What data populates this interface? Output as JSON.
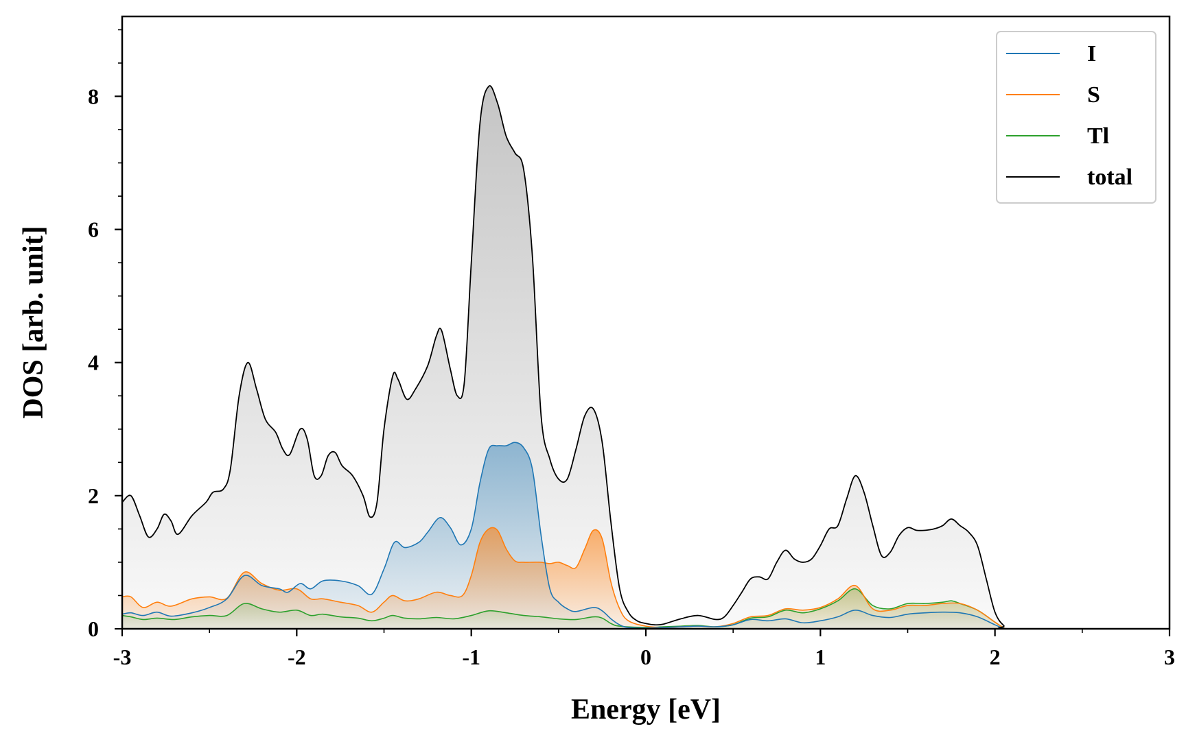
{
  "chart_data": {
    "type": "area",
    "title": "",
    "xlabel": "Energy [eV]",
    "ylabel": "DOS [arb. unit]",
    "xlim": [
      -3,
      3
    ],
    "ylim": [
      0,
      9.2
    ],
    "xticks": [
      -3,
      -2,
      -1,
      0,
      1,
      2,
      3
    ],
    "xtick_labels": [
      "-3",
      "-2",
      "-1",
      "0",
      "1",
      "2",
      "3"
    ],
    "yticks": [
      0,
      2,
      4,
      6,
      8
    ],
    "ytick_labels": [
      "0",
      "2",
      "4",
      "6",
      "8"
    ],
    "legend_position": "top-right",
    "series": [
      {
        "name": "I",
        "color": "#1f77b4",
        "points": [
          [
            -3.0,
            0.22
          ],
          [
            -2.95,
            0.24
          ],
          [
            -2.88,
            0.2
          ],
          [
            -2.8,
            0.25
          ],
          [
            -2.72,
            0.19
          ],
          [
            -2.6,
            0.24
          ],
          [
            -2.5,
            0.32
          ],
          [
            -2.4,
            0.45
          ],
          [
            -2.3,
            0.8
          ],
          [
            -2.2,
            0.65
          ],
          [
            -2.1,
            0.6
          ],
          [
            -2.05,
            0.55
          ],
          [
            -1.98,
            0.68
          ],
          [
            -1.92,
            0.6
          ],
          [
            -1.85,
            0.72
          ],
          [
            -1.75,
            0.72
          ],
          [
            -1.65,
            0.65
          ],
          [
            -1.57,
            0.52
          ],
          [
            -1.5,
            0.9
          ],
          [
            -1.44,
            1.3
          ],
          [
            -1.38,
            1.22
          ],
          [
            -1.3,
            1.3
          ],
          [
            -1.25,
            1.45
          ],
          [
            -1.18,
            1.67
          ],
          [
            -1.12,
            1.52
          ],
          [
            -1.06,
            1.26
          ],
          [
            -1.0,
            1.5
          ],
          [
            -0.95,
            2.2
          ],
          [
            -0.9,
            2.7
          ],
          [
            -0.85,
            2.75
          ],
          [
            -0.8,
            2.75
          ],
          [
            -0.75,
            2.8
          ],
          [
            -0.7,
            2.72
          ],
          [
            -0.65,
            2.4
          ],
          [
            -0.6,
            1.4
          ],
          [
            -0.55,
            0.6
          ],
          [
            -0.5,
            0.4
          ],
          [
            -0.45,
            0.3
          ],
          [
            -0.4,
            0.26
          ],
          [
            -0.3,
            0.32
          ],
          [
            -0.25,
            0.27
          ],
          [
            -0.2,
            0.15
          ],
          [
            -0.15,
            0.06
          ],
          [
            -0.1,
            0.02
          ],
          [
            0.0,
            0.01
          ],
          [
            0.1,
            0.02
          ],
          [
            0.2,
            0.03
          ],
          [
            0.3,
            0.04
          ],
          [
            0.4,
            0.03
          ],
          [
            0.5,
            0.06
          ],
          [
            0.6,
            0.14
          ],
          [
            0.7,
            0.12
          ],
          [
            0.8,
            0.15
          ],
          [
            0.9,
            0.09
          ],
          [
            1.0,
            0.12
          ],
          [
            1.1,
            0.18
          ],
          [
            1.2,
            0.28
          ],
          [
            1.3,
            0.2
          ],
          [
            1.4,
            0.17
          ],
          [
            1.5,
            0.22
          ],
          [
            1.6,
            0.24
          ],
          [
            1.7,
            0.25
          ],
          [
            1.8,
            0.24
          ],
          [
            1.9,
            0.18
          ],
          [
            2.0,
            0.06
          ],
          [
            2.05,
            0.01
          ],
          [
            2.1,
            0.0
          ],
          [
            3.0,
            0.0
          ]
        ]
      },
      {
        "name": "S",
        "color": "#ff7f0e",
        "points": [
          [
            -3.0,
            0.48
          ],
          [
            -2.95,
            0.48
          ],
          [
            -2.88,
            0.32
          ],
          [
            -2.8,
            0.4
          ],
          [
            -2.72,
            0.34
          ],
          [
            -2.6,
            0.45
          ],
          [
            -2.5,
            0.48
          ],
          [
            -2.4,
            0.46
          ],
          [
            -2.3,
            0.85
          ],
          [
            -2.2,
            0.68
          ],
          [
            -2.1,
            0.58
          ],
          [
            -2.0,
            0.6
          ],
          [
            -1.92,
            0.45
          ],
          [
            -1.85,
            0.45
          ],
          [
            -1.75,
            0.4
          ],
          [
            -1.65,
            0.35
          ],
          [
            -1.57,
            0.25
          ],
          [
            -1.5,
            0.4
          ],
          [
            -1.45,
            0.5
          ],
          [
            -1.38,
            0.42
          ],
          [
            -1.3,
            0.45
          ],
          [
            -1.2,
            0.55
          ],
          [
            -1.12,
            0.5
          ],
          [
            -1.05,
            0.5
          ],
          [
            -1.0,
            0.8
          ],
          [
            -0.95,
            1.3
          ],
          [
            -0.9,
            1.5
          ],
          [
            -0.85,
            1.48
          ],
          [
            -0.8,
            1.2
          ],
          [
            -0.75,
            1.02
          ],
          [
            -0.7,
            1.0
          ],
          [
            -0.65,
            1.0
          ],
          [
            -0.6,
            1.0
          ],
          [
            -0.55,
            0.98
          ],
          [
            -0.5,
            1.0
          ],
          [
            -0.45,
            0.95
          ],
          [
            -0.4,
            0.92
          ],
          [
            -0.35,
            1.2
          ],
          [
            -0.3,
            1.48
          ],
          [
            -0.25,
            1.35
          ],
          [
            -0.2,
            0.7
          ],
          [
            -0.15,
            0.3
          ],
          [
            -0.1,
            0.12
          ],
          [
            0.0,
            0.04
          ],
          [
            0.1,
            0.02
          ],
          [
            0.2,
            0.03
          ],
          [
            0.3,
            0.04
          ],
          [
            0.4,
            0.03
          ],
          [
            0.5,
            0.08
          ],
          [
            0.6,
            0.18
          ],
          [
            0.7,
            0.2
          ],
          [
            0.8,
            0.3
          ],
          [
            0.9,
            0.28
          ],
          [
            1.0,
            0.32
          ],
          [
            1.1,
            0.45
          ],
          [
            1.2,
            0.65
          ],
          [
            1.3,
            0.3
          ],
          [
            1.4,
            0.28
          ],
          [
            1.5,
            0.35
          ],
          [
            1.6,
            0.35
          ],
          [
            1.7,
            0.38
          ],
          [
            1.8,
            0.38
          ],
          [
            1.9,
            0.28
          ],
          [
            2.0,
            0.1
          ],
          [
            2.05,
            0.02
          ],
          [
            2.1,
            0.0
          ],
          [
            3.0,
            0.0
          ]
        ]
      },
      {
        "name": "Tl",
        "color": "#2ca02c",
        "points": [
          [
            -3.0,
            0.2
          ],
          [
            -2.95,
            0.18
          ],
          [
            -2.88,
            0.14
          ],
          [
            -2.8,
            0.16
          ],
          [
            -2.7,
            0.14
          ],
          [
            -2.6,
            0.18
          ],
          [
            -2.5,
            0.2
          ],
          [
            -2.4,
            0.2
          ],
          [
            -2.3,
            0.38
          ],
          [
            -2.2,
            0.3
          ],
          [
            -2.1,
            0.25
          ],
          [
            -2.0,
            0.28
          ],
          [
            -1.92,
            0.2
          ],
          [
            -1.85,
            0.22
          ],
          [
            -1.75,
            0.18
          ],
          [
            -1.65,
            0.16
          ],
          [
            -1.57,
            0.12
          ],
          [
            -1.5,
            0.16
          ],
          [
            -1.45,
            0.2
          ],
          [
            -1.38,
            0.16
          ],
          [
            -1.3,
            0.15
          ],
          [
            -1.2,
            0.17
          ],
          [
            -1.1,
            0.15
          ],
          [
            -1.0,
            0.2
          ],
          [
            -0.9,
            0.27
          ],
          [
            -0.8,
            0.24
          ],
          [
            -0.7,
            0.2
          ],
          [
            -0.6,
            0.18
          ],
          [
            -0.5,
            0.15
          ],
          [
            -0.4,
            0.14
          ],
          [
            -0.3,
            0.18
          ],
          [
            -0.25,
            0.16
          ],
          [
            -0.2,
            0.08
          ],
          [
            -0.15,
            0.04
          ],
          [
            0.0,
            0.02
          ],
          [
            0.1,
            0.03
          ],
          [
            0.2,
            0.04
          ],
          [
            0.3,
            0.05
          ],
          [
            0.4,
            0.03
          ],
          [
            0.5,
            0.06
          ],
          [
            0.6,
            0.16
          ],
          [
            0.7,
            0.18
          ],
          [
            0.8,
            0.28
          ],
          [
            0.9,
            0.24
          ],
          [
            1.0,
            0.3
          ],
          [
            1.1,
            0.42
          ],
          [
            1.2,
            0.6
          ],
          [
            1.3,
            0.35
          ],
          [
            1.4,
            0.3
          ],
          [
            1.5,
            0.38
          ],
          [
            1.6,
            0.38
          ],
          [
            1.7,
            0.4
          ],
          [
            1.75,
            0.42
          ],
          [
            1.8,
            0.38
          ],
          [
            1.9,
            0.28
          ],
          [
            2.0,
            0.1
          ],
          [
            2.05,
            0.02
          ],
          [
            2.1,
            0.0
          ],
          [
            3.0,
            0.0
          ]
        ]
      },
      {
        "name": "total",
        "color": "#000000",
        "points": [
          [
            -3.0,
            1.9
          ],
          [
            -2.95,
            2.0
          ],
          [
            -2.9,
            1.7
          ],
          [
            -2.85,
            1.38
          ],
          [
            -2.8,
            1.5
          ],
          [
            -2.76,
            1.72
          ],
          [
            -2.72,
            1.62
          ],
          [
            -2.68,
            1.42
          ],
          [
            -2.6,
            1.7
          ],
          [
            -2.52,
            1.9
          ],
          [
            -2.48,
            2.05
          ],
          [
            -2.42,
            2.1
          ],
          [
            -2.38,
            2.4
          ],
          [
            -2.33,
            3.5
          ],
          [
            -2.28,
            4.0
          ],
          [
            -2.23,
            3.6
          ],
          [
            -2.18,
            3.15
          ],
          [
            -2.12,
            2.95
          ],
          [
            -2.08,
            2.7
          ],
          [
            -2.04,
            2.62
          ],
          [
            -1.98,
            3.0
          ],
          [
            -1.94,
            2.85
          ],
          [
            -1.9,
            2.3
          ],
          [
            -1.86,
            2.3
          ],
          [
            -1.82,
            2.6
          ],
          [
            -1.78,
            2.65
          ],
          [
            -1.74,
            2.45
          ],
          [
            -1.68,
            2.3
          ],
          [
            -1.62,
            2.0
          ],
          [
            -1.58,
            1.68
          ],
          [
            -1.54,
            1.9
          ],
          [
            -1.5,
            3.0
          ],
          [
            -1.45,
            3.8
          ],
          [
            -1.42,
            3.75
          ],
          [
            -1.37,
            3.45
          ],
          [
            -1.32,
            3.6
          ],
          [
            -1.25,
            3.95
          ],
          [
            -1.2,
            4.4
          ],
          [
            -1.17,
            4.48
          ],
          [
            -1.12,
            3.9
          ],
          [
            -1.08,
            3.5
          ],
          [
            -1.04,
            3.7
          ],
          [
            -1.0,
            5.5
          ],
          [
            -0.95,
            7.6
          ],
          [
            -0.9,
            8.15
          ],
          [
            -0.85,
            7.9
          ],
          [
            -0.8,
            7.4
          ],
          [
            -0.75,
            7.15
          ],
          [
            -0.7,
            6.9
          ],
          [
            -0.65,
            5.6
          ],
          [
            -0.6,
            3.2
          ],
          [
            -0.55,
            2.55
          ],
          [
            -0.5,
            2.25
          ],
          [
            -0.45,
            2.25
          ],
          [
            -0.4,
            2.7
          ],
          [
            -0.35,
            3.2
          ],
          [
            -0.3,
            3.3
          ],
          [
            -0.25,
            2.8
          ],
          [
            -0.2,
            1.6
          ],
          [
            -0.15,
            0.6
          ],
          [
            -0.1,
            0.25
          ],
          [
            -0.05,
            0.12
          ],
          [
            0.0,
            0.08
          ],
          [
            0.05,
            0.06
          ],
          [
            0.1,
            0.07
          ],
          [
            0.2,
            0.15
          ],
          [
            0.3,
            0.2
          ],
          [
            0.4,
            0.14
          ],
          [
            0.45,
            0.18
          ],
          [
            0.5,
            0.35
          ],
          [
            0.55,
            0.55
          ],
          [
            0.6,
            0.75
          ],
          [
            0.65,
            0.78
          ],
          [
            0.7,
            0.75
          ],
          [
            0.75,
            1.0
          ],
          [
            0.8,
            1.18
          ],
          [
            0.85,
            1.05
          ],
          [
            0.9,
            1.0
          ],
          [
            0.95,
            1.05
          ],
          [
            1.0,
            1.25
          ],
          [
            1.05,
            1.5
          ],
          [
            1.1,
            1.55
          ],
          [
            1.15,
            1.95
          ],
          [
            1.2,
            2.3
          ],
          [
            1.25,
            2.05
          ],
          [
            1.3,
            1.55
          ],
          [
            1.35,
            1.1
          ],
          [
            1.4,
            1.15
          ],
          [
            1.45,
            1.4
          ],
          [
            1.5,
            1.52
          ],
          [
            1.55,
            1.48
          ],
          [
            1.6,
            1.48
          ],
          [
            1.65,
            1.5
          ],
          [
            1.7,
            1.55
          ],
          [
            1.75,
            1.65
          ],
          [
            1.8,
            1.55
          ],
          [
            1.85,
            1.45
          ],
          [
            1.9,
            1.25
          ],
          [
            1.95,
            0.75
          ],
          [
            2.0,
            0.25
          ],
          [
            2.05,
            0.05
          ],
          [
            2.1,
            0.0
          ],
          [
            3.0,
            0.0
          ]
        ]
      }
    ]
  }
}
